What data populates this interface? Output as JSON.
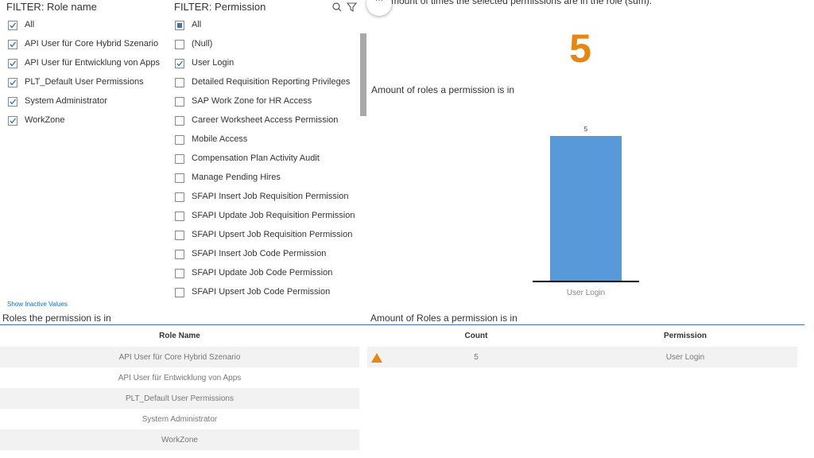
{
  "role_filter": {
    "title": "FILTER: Role name",
    "items": [
      {
        "label": "All",
        "state": "checked"
      },
      {
        "label": "API User für Core Hybrid Szenario",
        "state": "checked"
      },
      {
        "label": "API User für Entwicklung von Apps",
        "state": "checked"
      },
      {
        "label": "PLT_Default User Permissions",
        "state": "checked"
      },
      {
        "label": "System Administrator",
        "state": "checked"
      },
      {
        "label": "WorkZone",
        "state": "checked"
      }
    ],
    "link": "Show Inactive Values"
  },
  "permission_filter": {
    "title": "FILTER: Permission",
    "items": [
      {
        "label": "All",
        "state": "partial"
      },
      {
        "label": "(Null)",
        "state": "unchecked"
      },
      {
        "label": "User Login",
        "state": "checked"
      },
      {
        "label": "Detailed Requisition Reporting Privileges",
        "state": "unchecked"
      },
      {
        "label": "SAP Work Zone for HR Access",
        "state": "unchecked"
      },
      {
        "label": "Career Worksheet Access Permission",
        "state": "unchecked"
      },
      {
        "label": "Mobile Access",
        "state": "unchecked"
      },
      {
        "label": "Compensation Plan Activity Audit",
        "state": "unchecked"
      },
      {
        "label": "Manage Pending Hires",
        "state": "unchecked"
      },
      {
        "label": "SFAPI Insert Job Requisition Permission",
        "state": "unchecked"
      },
      {
        "label": "SFAPI Update Job Requisition Permission",
        "state": "unchecked"
      },
      {
        "label": "SFAPI Upsert Job Requisition Permission",
        "state": "unchecked"
      },
      {
        "label": "SFAPI Insert Job Code Permission",
        "state": "unchecked"
      },
      {
        "label": "SFAPI Update Job Code Permission",
        "state": "unchecked"
      },
      {
        "label": "SFAPI Upsert Job Code Permission",
        "state": "unchecked"
      }
    ]
  },
  "kpi": {
    "title": "Amount of times the selected permissions are in the role (sum):",
    "value": 5
  },
  "bar_chart": {
    "type": "bar",
    "title": "Amount of roles a permission is in",
    "categories": [
      "User Login"
    ],
    "values": [
      5
    ],
    "color": "#5899da"
  },
  "roles_table": {
    "title": "Roles the permission is in",
    "header": [
      "Role Name"
    ],
    "rows": [
      [
        "API User für Core Hybrid Szenario"
      ],
      [
        "API User für Entwicklung von Apps"
      ],
      [
        "PLT_Default User Permissions"
      ],
      [
        "System Administrator"
      ],
      [
        "WorkZone"
      ]
    ]
  },
  "count_table": {
    "title": "Amount of Roles a permission is in",
    "header": [
      "Count",
      "Permission"
    ],
    "rows": [
      [
        "5",
        "User Login"
      ]
    ]
  }
}
